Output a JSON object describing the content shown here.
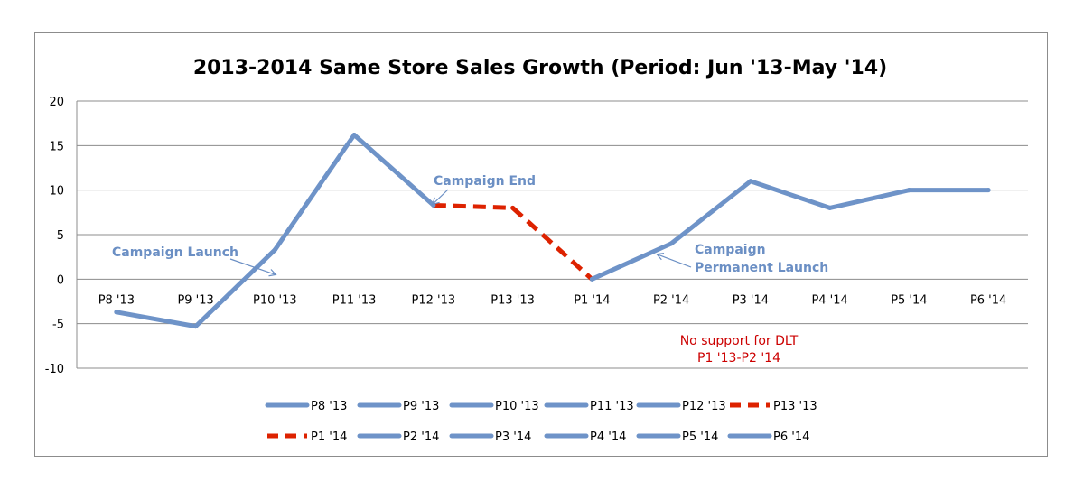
{
  "chart_data": {
    "type": "line",
    "title": "2013-2014 Same Store Sales Growth (Period: Jun '13-May '14)",
    "xlabel": "",
    "ylabel": "",
    "ylim": [
      -10,
      20
    ],
    "yticks": [
      20,
      15,
      10,
      5,
      0,
      -5,
      -10
    ],
    "grid": true,
    "categories": [
      "P8 '13",
      "P9 '13",
      "P10 '13",
      "P11 '13",
      "P12 '13",
      "P13 '13",
      "P1 '14",
      "P2 '14",
      "P3 '14",
      "P4 '14",
      "P5 '14",
      "P6 '14"
    ],
    "values": [
      -3.7,
      -5.3,
      3.3,
      16.2,
      8.3,
      8.0,
      0.0,
      4.0,
      11.0,
      8.0,
      10.0,
      10.0
    ],
    "segment_styles": [
      "solid",
      "solid",
      "solid",
      "solid",
      "dashed",
      "dashed",
      "solid",
      "solid",
      "solid",
      "solid",
      "solid"
    ],
    "colors": {
      "line": "#6e93c8",
      "dashed": "#dd2200",
      "grid": "#8c8c8c",
      "annotation_blue": "#6b8fc4",
      "annotation_red": "#cc0000"
    },
    "annotations": [
      {
        "text": "Campaign Launch",
        "at_category": 2,
        "at_value": 0.5
      },
      {
        "text": "Campaign End",
        "at_category": 4,
        "at_value": 8.3
      },
      {
        "text": "Campaign",
        "at_category": 7,
        "at_value": 2.8
      },
      {
        "text": "Permanent Launch",
        "at_category": 7,
        "at_value": 2.8
      },
      {
        "text": "No support for DLT",
        "at_category": 7,
        "at_value": -6.5
      },
      {
        "text": "P1 '13-P2 '14",
        "at_category": 7,
        "at_value": -8.5
      }
    ],
    "legend": {
      "placement": "bottom",
      "entries": [
        {
          "label": "P8 '13",
          "style": "solid"
        },
        {
          "label": "P9 '13",
          "style": "solid"
        },
        {
          "label": "P10 '13",
          "style": "solid"
        },
        {
          "label": "P11 '13",
          "style": "solid"
        },
        {
          "label": "P12 '13",
          "style": "solid"
        },
        {
          "label": "P13 '13",
          "style": "dashed"
        },
        {
          "label": "P1 '14",
          "style": "dashed"
        },
        {
          "label": "P2 '14",
          "style": "solid"
        },
        {
          "label": "P3 '14",
          "style": "solid"
        },
        {
          "label": "P4 '14",
          "style": "solid"
        },
        {
          "label": "P5 '14",
          "style": "solid"
        },
        {
          "label": "P6 '14",
          "style": "solid"
        }
      ]
    }
  }
}
